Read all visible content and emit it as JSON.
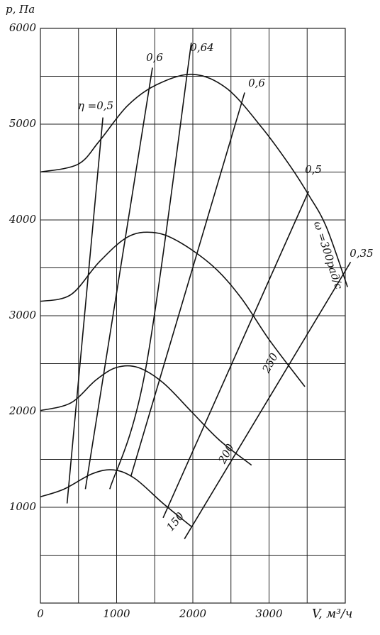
{
  "chart_data": {
    "type": "line",
    "ylabel": "p, Па",
    "xlabel": "V, м³/ч",
    "xlim": [
      0,
      4000
    ],
    "ylim": [
      0,
      6000
    ],
    "xticks": [
      0,
      1000,
      2000,
      3000
    ],
    "yticks": [
      1000,
      2000,
      3000,
      4000,
      5000,
      6000
    ],
    "x_minor_ticks": [
      500,
      1500,
      2500,
      3500,
      4000
    ],
    "y_minor_ticks": [
      500,
      1500,
      2500,
      3500,
      4500,
      5500
    ],
    "grid": true,
    "series": [
      {
        "name": "ω =300рад/с",
        "color": "#111",
        "x": [
          0,
          490,
          770,
          1140,
          1520,
          2000,
          2450,
          2910,
          3280,
          3520,
          3750,
          4030
        ],
        "values": [
          4500,
          4580,
          4820,
          5190,
          5410,
          5520,
          5370,
          4960,
          4560,
          4260,
          3930,
          3300
        ]
      },
      {
        "name": "250",
        "color": "#111",
        "x": [
          0,
          400,
          770,
          1140,
          1470,
          1800,
          2260,
          2630,
          3010,
          3470
        ],
        "values": [
          3150,
          3220,
          3560,
          3820,
          3870,
          3780,
          3520,
          3190,
          2740,
          2260
        ]
      },
      {
        "name": "200",
        "color": "#111",
        "x": [
          0,
          400,
          730,
          1000,
          1280,
          1610,
          1980,
          2350,
          2770
        ],
        "values": [
          2010,
          2090,
          2330,
          2460,
          2460,
          2300,
          2000,
          1700,
          1440
        ]
      },
      {
        "name": "150",
        "color": "#111",
        "x": [
          0,
          310,
          680,
          960,
          1240,
          1610,
          1980
        ],
        "values": [
          1110,
          1190,
          1350,
          1390,
          1300,
          1040,
          800
        ]
      },
      {
        "name": "η =0,5",
        "color": "#111",
        "x": [
          350,
          820
        ],
        "values": [
          1040,
          5070
        ]
      },
      {
        "name": "0,6",
        "color": "#111",
        "x": [
          590,
          1470
        ],
        "values": [
          1190,
          5590
        ]
      },
      {
        "name": "0,64",
        "color": "#111",
        "x": [
          910,
          1380,
          1980
        ],
        "values": [
          1190,
          2440,
          5850
        ]
      },
      {
        "name": "0,6",
        "color": "#111",
        "x": [
          1190,
          2680
        ],
        "values": [
          1330,
          5330
        ]
      },
      {
        "name": "0,5",
        "color": "#111",
        "x": [
          1610,
          3520
        ],
        "values": [
          890,
          4300
        ]
      },
      {
        "name": "0,35",
        "color": "#111",
        "x": [
          1890,
          4070
        ],
        "values": [
          670,
          3560
        ]
      }
    ]
  }
}
